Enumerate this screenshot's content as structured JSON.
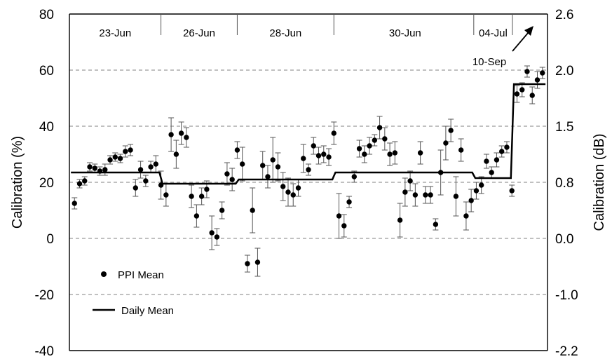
{
  "chart_data": {
    "type": "scatter",
    "ylabel": "Calibration (%)",
    "y2label": "Calibration (dB)",
    "ylim": [
      -40,
      80
    ],
    "yticks": [
      "80",
      "60",
      "40",
      "20",
      "0",
      "-20",
      "-40"
    ],
    "y2ticks": [
      "2.6",
      "2.0",
      "1.5",
      "0.8",
      "0.0",
      "-1.0",
      "-2.2"
    ],
    "grid": "dashed horizontal",
    "period_labels": [
      "23-Jun",
      "26-Jun",
      "28-Jun",
      "30-Jun",
      "04-Jul"
    ],
    "annotation": "10-Sep",
    "legend": {
      "position": "bottom-left",
      "ppi_label": "PPI Mean",
      "daily_label": "Daily Mean"
    },
    "series": [
      {
        "name": "PPI Mean",
        "points": [
          {
            "x": 1,
            "y": 12.5,
            "err": 2
          },
          {
            "x": 2,
            "y": 19.5,
            "err": 1.5
          },
          {
            "x": 3,
            "y": 20.5,
            "err": 1.5
          },
          {
            "x": 4,
            "y": 25.5,
            "err": 1.5
          },
          {
            "x": 5,
            "y": 25,
            "err": 1.5
          },
          {
            "x": 6,
            "y": 24,
            "err": 1.5
          },
          {
            "x": 7,
            "y": 24.5,
            "err": 2
          },
          {
            "x": 8,
            "y": 28,
            "err": 1.5
          },
          {
            "x": 9,
            "y": 29,
            "err": 1.5
          },
          {
            "x": 10,
            "y": 28.5,
            "err": 1.5
          },
          {
            "x": 11,
            "y": 31,
            "err": 2
          },
          {
            "x": 12,
            "y": 31.5,
            "err": 2
          },
          {
            "x": 13,
            "y": 18,
            "err": 3
          },
          {
            "x": 14,
            "y": 24.5,
            "err": 3
          },
          {
            "x": 15,
            "y": 20.5,
            "err": 2
          },
          {
            "x": 16,
            "y": 25.5,
            "err": 2
          },
          {
            "x": 17,
            "y": 26.5,
            "err": 3
          },
          {
            "x": 18,
            "y": 19,
            "err": 5
          },
          {
            "x": 19,
            "y": 15.5,
            "err": 4
          },
          {
            "x": 20,
            "y": 37,
            "err": 6
          },
          {
            "x": 21,
            "y": 30,
            "err": 5
          },
          {
            "x": 22,
            "y": 37.5,
            "err": 4
          },
          {
            "x": 23,
            "y": 36,
            "err": 3.5
          },
          {
            "x": 24,
            "y": 15,
            "err": 4
          },
          {
            "x": 25,
            "y": 8,
            "err": 4
          },
          {
            "x": 26,
            "y": 15,
            "err": 3
          },
          {
            "x": 27,
            "y": 17.5,
            "err": 3
          },
          {
            "x": 28,
            "y": 2,
            "err": 6
          },
          {
            "x": 29,
            "y": 0.5,
            "err": 3
          },
          {
            "x": 30,
            "y": 10,
            "err": 3
          },
          {
            "x": 31,
            "y": 23,
            "err": 4
          },
          {
            "x": 32,
            "y": 21,
            "err": 4
          },
          {
            "x": 33,
            "y": 31.5,
            "err": 3
          },
          {
            "x": 34,
            "y": 26.5,
            "err": 6
          },
          {
            "x": 35,
            "y": -9,
            "err": 3
          },
          {
            "x": 36,
            "y": 10,
            "err": 8
          },
          {
            "x": 37,
            "y": -8.5,
            "err": 5
          },
          {
            "x": 38,
            "y": 26,
            "err": 5
          },
          {
            "x": 39,
            "y": 22,
            "err": 4
          },
          {
            "x": 40,
            "y": 28,
            "err": 8
          },
          {
            "x": 41,
            "y": 25.5,
            "err": 5
          },
          {
            "x": 42,
            "y": 18.5,
            "err": 5
          },
          {
            "x": 43,
            "y": 16.5,
            "err": 5
          },
          {
            "x": 44,
            "y": 15.5,
            "err": 4
          },
          {
            "x": 45,
            "y": 18,
            "err": 3
          },
          {
            "x": 46,
            "y": 28.5,
            "err": 5
          },
          {
            "x": 47,
            "y": 24.5,
            "err": 2
          },
          {
            "x": 48,
            "y": 33,
            "err": 3
          },
          {
            "x": 49,
            "y": 29.5,
            "err": 3
          },
          {
            "x": 50,
            "y": 30,
            "err": 3
          },
          {
            "x": 51,
            "y": 29,
            "err": 3
          },
          {
            "x": 52,
            "y": 37.5,
            "err": 4
          },
          {
            "x": 53,
            "y": 8,
            "err": 8
          },
          {
            "x": 54,
            "y": 4.5,
            "err": 4
          },
          {
            "x": 55,
            "y": 13,
            "err": 2
          },
          {
            "x": 56,
            "y": 22,
            "err": 2
          },
          {
            "x": 57,
            "y": 32,
            "err": 3
          },
          {
            "x": 58,
            "y": 30,
            "err": 3
          },
          {
            "x": 59,
            "y": 33,
            "err": 3
          },
          {
            "x": 60,
            "y": 35,
            "err": 2
          },
          {
            "x": 61,
            "y": 39.5,
            "err": 4
          },
          {
            "x": 62,
            "y": 35.5,
            "err": 4
          },
          {
            "x": 63,
            "y": 30,
            "err": 4
          },
          {
            "x": 64,
            "y": 30.5,
            "err": 4
          },
          {
            "x": 65,
            "y": 6.5,
            "err": 6
          },
          {
            "x": 66,
            "y": 16.5,
            "err": 5
          },
          {
            "x": 67,
            "y": 20.5,
            "err": 3.5
          },
          {
            "x": 68,
            "y": 15.5,
            "err": 4
          },
          {
            "x": 69,
            "y": 30.5,
            "err": 4
          },
          {
            "x": 70,
            "y": 15.5,
            "err": 3
          },
          {
            "x": 71,
            "y": 15.5,
            "err": 3
          },
          {
            "x": 72,
            "y": 5,
            "err": 2
          },
          {
            "x": 73,
            "y": 23.5,
            "err": 8
          },
          {
            "x": 74,
            "y": 34,
            "err": 6
          },
          {
            "x": 75,
            "y": 38.5,
            "err": 4
          },
          {
            "x": 76,
            "y": 15,
            "err": 7
          },
          {
            "x": 77,
            "y": 31.5,
            "err": 4
          },
          {
            "x": 78,
            "y": 8,
            "err": 5
          },
          {
            "x": 79,
            "y": 13.5,
            "err": 4
          },
          {
            "x": 80,
            "y": 17,
            "err": 3
          },
          {
            "x": 81,
            "y": 19,
            "err": 3
          },
          {
            "x": 82,
            "y": 27.5,
            "err": 2.5
          },
          {
            "x": 83,
            "y": 23.5,
            "err": 2
          },
          {
            "x": 84,
            "y": 28,
            "err": 2.5
          },
          {
            "x": 85,
            "y": 31,
            "err": 2
          },
          {
            "x": 86,
            "y": 32.5,
            "err": 2
          },
          {
            "x": 87,
            "y": 17,
            "err": 2
          },
          {
            "x": 88,
            "y": 51.5,
            "err": 3
          },
          {
            "x": 89,
            "y": 53,
            "err": 2.5
          },
          {
            "x": 90,
            "y": 59.5,
            "err": 2
          },
          {
            "x": 91,
            "y": 51,
            "err": 3
          },
          {
            "x": 92,
            "y": 56.5,
            "err": 3
          },
          {
            "x": 93,
            "y": 59,
            "err": 2
          }
        ]
      },
      {
        "name": "Daily Mean",
        "steps": [
          {
            "x0": 0.3,
            "x1": 17.7,
            "y": 23.5
          },
          {
            "x0": 18.3,
            "x1": 32.7,
            "y": 19.5
          },
          {
            "x0": 33.3,
            "x1": 51.7,
            "y": 21
          },
          {
            "x0": 52.3,
            "x1": 79.2,
            "y": 23.5
          },
          {
            "x0": 79.8,
            "x1": 86.8,
            "y": 21.5
          },
          {
            "x0": 87.4,
            "x1": 93.6,
            "y": 55
          }
        ]
      }
    ]
  }
}
